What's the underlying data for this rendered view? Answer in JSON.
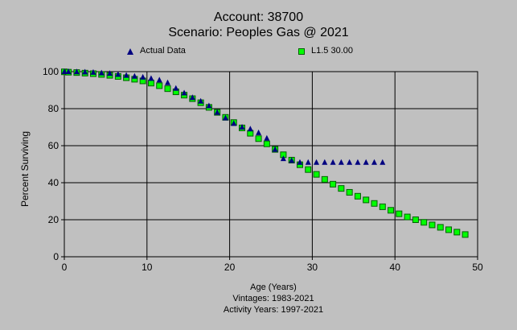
{
  "chart_data": {
    "type": "scatter",
    "title": "Account: 38700",
    "subtitle": "Scenario: Peoples Gas @ 2021",
    "xlabel": "Age (Years)",
    "ylabel": "Percent Surviving",
    "xlim": [
      0,
      50
    ],
    "ylim": [
      0,
      100
    ],
    "xticks": [
      "0",
      "10",
      "20",
      "30",
      "40",
      "50"
    ],
    "yticks": [
      "0",
      "20",
      "40",
      "60",
      "80",
      "100"
    ],
    "grid": true,
    "legend": "top",
    "footer_lines": [
      "Vintages: 1983-2021",
      "Activity Years: 1997-2021"
    ],
    "series": [
      {
        "name": "Actual Data",
        "marker": "triangle",
        "color": "#000080",
        "x": [
          0,
          0.5,
          1.5,
          2.5,
          3.5,
          4.5,
          5.5,
          6.5,
          7.5,
          8.5,
          9.5,
          10.5,
          11.5,
          12.5,
          13.5,
          14.5,
          15.5,
          16.5,
          17.5,
          18.5,
          19.5,
          20.5,
          21.5,
          22.5,
          23.5,
          24.5,
          25.5,
          26.5,
          27.5,
          28.5,
          29.5,
          30.5,
          31.5,
          32.5,
          33.5,
          34.5,
          35.5,
          36.5,
          37.5,
          38.5
        ],
        "y": [
          100,
          100,
          99.9,
          99.8,
          99.6,
          99.3,
          99,
          98.5,
          98,
          97.5,
          97,
          96.3,
          95.5,
          94,
          91,
          88.5,
          86,
          84,
          81.5,
          78,
          75,
          72,
          70,
          69,
          67,
          64,
          58,
          53,
          52,
          51,
          51,
          51,
          51,
          51,
          51,
          51,
          51,
          51,
          51,
          51
        ]
      },
      {
        "name": "L1.5 30.00",
        "marker": "square",
        "color": "#00ff00",
        "x": [
          0,
          0.5,
          1.5,
          2.5,
          3.5,
          4.5,
          5.5,
          6.5,
          7.5,
          8.5,
          9.5,
          10.5,
          11.5,
          12.5,
          13.5,
          14.5,
          15.5,
          16.5,
          17.5,
          18.5,
          19.5,
          20.5,
          21.5,
          22.5,
          23.5,
          24.5,
          25.5,
          26.5,
          27.5,
          28.5,
          29.5,
          30.5,
          31.5,
          32.5,
          33.5,
          34.5,
          35.5,
          36.5,
          37.5,
          38.5,
          39.5,
          40.5,
          41.5,
          42.5,
          43.5,
          44.5,
          45.5,
          46.5,
          47.5,
          48.5
        ],
        "y": [
          99.9,
          99.7,
          99.5,
          99.2,
          98.9,
          98.5,
          98,
          97.4,
          96.7,
          95.9,
          95,
          93.8,
          92.4,
          90.8,
          89.1,
          87.3,
          85.4,
          83.2,
          80.7,
          78,
          75.3,
          72.5,
          69.6,
          66.7,
          63.8,
          61,
          58,
          55.1,
          52.2,
          49.7,
          47.1,
          44.5,
          41.8,
          39.2,
          36.9,
          34.8,
          32.7,
          30.7,
          28.8,
          27,
          25.1,
          23.2,
          21.5,
          20,
          18.6,
          17.2,
          15.9,
          14.6,
          13.3,
          12
        ]
      }
    ]
  }
}
